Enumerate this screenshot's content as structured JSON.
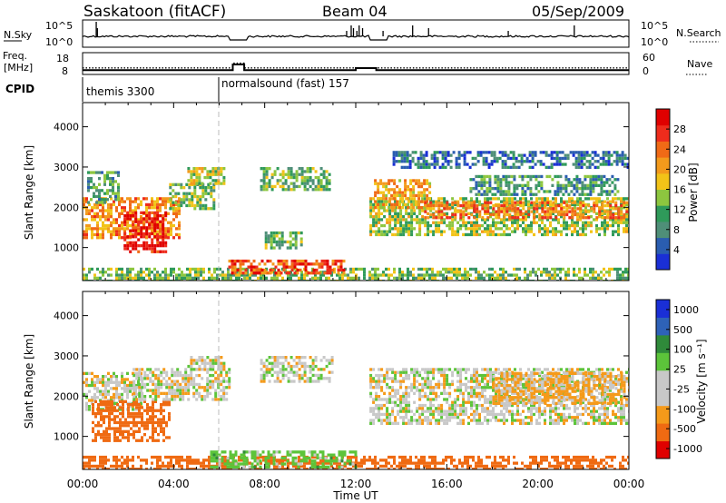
{
  "header": {
    "station": "Saskatoon (fitACF)",
    "beam": "Beam 04",
    "date": "05/Sep/2009"
  },
  "colors": {
    "power_scale": [
      "#1a2fd6",
      "#2a5db0",
      "#4f8f78",
      "#2f9a5a",
      "#8dc63f",
      "#f2c318",
      "#f39a1c",
      "#f06a16",
      "#ee2c1c",
      "#e00000"
    ],
    "velocity_scale": [
      "#e00000",
      "#ef6a12",
      "#f59a1a",
      "#c8c8c8",
      "#c8c8c8",
      "#5cc43a",
      "#2f8a3a",
      "#2e62b8",
      "#1a2fd6"
    ],
    "velocity_gray": "#c8c8c8"
  },
  "chart_data": [
    {
      "type": "line",
      "panel": "noise",
      "left_label": "N.Sky",
      "right_label": "N.Search",
      "left_ticks": [
        "10^5",
        "10^0"
      ],
      "right_ticks": [
        "10^5",
        "10^0"
      ],
      "x_range_hours": [
        0,
        24
      ]
    },
    {
      "type": "line",
      "panel": "frequency",
      "left_label": "Freq.",
      "left_unit": "[MHz]",
      "left_ticks": [
        "18",
        "8"
      ],
      "right_label": "Nave",
      "right_ticks": [
        "60",
        "0"
      ],
      "x_range_hours": [
        0,
        24
      ],
      "freq_steps": [
        [
          0,
          10
        ],
        [
          6.6,
          10
        ],
        [
          6.6,
          12.6
        ],
        [
          7.1,
          12.6
        ],
        [
          7.1,
          10
        ],
        [
          12,
          10
        ],
        [
          12,
          10.9
        ],
        [
          12.9,
          10.9
        ],
        [
          12.9,
          10
        ],
        [
          24,
          10
        ]
      ],
      "nave_steps": [
        [
          0,
          11
        ],
        [
          6.6,
          11
        ],
        [
          6.6,
          13.2
        ],
        [
          7.1,
          13.2
        ],
        [
          7.1,
          11
        ],
        [
          24,
          11
        ]
      ]
    },
    {
      "type": "table",
      "panel": "cpid",
      "label": "CPID",
      "segments": [
        {
          "start_hour": 0,
          "name": "themis 3300"
        },
        {
          "start_hour": 6,
          "name": "normalsound (fast) 157"
        }
      ]
    },
    {
      "type": "heatmap",
      "panel": "power",
      "ylabel": "Slant Range [km]",
      "yticks": [
        1000,
        2000,
        3000,
        4000
      ],
      "ylim": [
        180,
        4600
      ],
      "xlim_hours": [
        0,
        24
      ],
      "colorbar_label": "Power [dB]",
      "colorbar_ticks": [
        4,
        8,
        12,
        16,
        20,
        24,
        28
      ],
      "blobs": [
        {
          "t": [
            0,
            4.2
          ],
          "r": [
            1250,
            2250
          ],
          "v": 20
        },
        {
          "t": [
            1.8,
            3.6
          ],
          "r": [
            900,
            1900
          ],
          "v": 28
        },
        {
          "t": [
            0.2,
            1.6
          ],
          "r": [
            2100,
            2900
          ],
          "v": 10
        },
        {
          "t": [
            3.8,
            5.8
          ],
          "r": [
            2000,
            2600
          ],
          "v": 12
        },
        {
          "t": [
            4.6,
            6.2
          ],
          "r": [
            2600,
            3000
          ],
          "v": 16
        },
        {
          "t": [
            7.8,
            10.8
          ],
          "r": [
            2450,
            3000
          ],
          "v": 11
        },
        {
          "t": [
            8.0,
            9.6
          ],
          "r": [
            1000,
            1400
          ],
          "v": 11
        },
        {
          "t": [
            12.6,
            24
          ],
          "r": [
            1350,
            2250
          ],
          "v": 14
        },
        {
          "t": [
            12.8,
            15.2
          ],
          "r": [
            2000,
            2700
          ],
          "v": 19
        },
        {
          "t": [
            15.0,
            24
          ],
          "r": [
            1750,
            2150
          ],
          "v": 22
        },
        {
          "t": [
            17.0,
            23.5
          ],
          "r": [
            2300,
            2800
          ],
          "v": 9
        },
        {
          "t": [
            13.5,
            24
          ],
          "r": [
            3000,
            3400
          ],
          "v": 6
        },
        {
          "t": [
            0,
            24
          ],
          "r": [
            180,
            500
          ],
          "v": 12
        },
        {
          "t": [
            6.4,
            11.5
          ],
          "r": [
            350,
            700
          ],
          "v": 24
        }
      ]
    },
    {
      "type": "heatmap",
      "panel": "velocity",
      "ylabel": "Slant Range [km]",
      "yticks": [
        1000,
        2000,
        3000,
        4000
      ],
      "ylim": [
        180,
        4600
      ],
      "xlim_hours": [
        0,
        24
      ],
      "xticks": [
        "00:00",
        "04:00",
        "08:00",
        "12:00",
        "16:00",
        "20:00",
        "00:00"
      ],
      "xlabel": "Time UT",
      "colorbar_label": "Velocity [m s⁻¹]",
      "colorbar_ticks": [
        "1000",
        "500",
        "100",
        "25",
        "-25",
        "-100",
        "-500",
        "-1000"
      ],
      "blobs": [
        {
          "t": [
            0,
            2.6
          ],
          "r": [
            1700,
            2600
          ],
          "v": 0
        },
        {
          "t": [
            0.4,
            3.8
          ],
          "r": [
            900,
            1900
          ],
          "v": -300
        },
        {
          "t": [
            2.2,
            6.4
          ],
          "r": [
            1900,
            2700
          ],
          "v": 0
        },
        {
          "t": [
            4.6,
            6.2
          ],
          "r": [
            2650,
            3000
          ],
          "v": 0
        },
        {
          "t": [
            7.8,
            11.0
          ],
          "r": [
            2400,
            3000
          ],
          "v": 0
        },
        {
          "t": [
            12.6,
            24
          ],
          "r": [
            1300,
            2700
          ],
          "v": 0
        },
        {
          "t": [
            18.0,
            23.8
          ],
          "r": [
            1800,
            2600
          ],
          "v": -40
        },
        {
          "t": [
            0,
            24
          ],
          "r": [
            180,
            520
          ],
          "v": -200
        },
        {
          "t": [
            5.6,
            12.0
          ],
          "r": [
            250,
            650
          ],
          "v": 60
        }
      ]
    }
  ]
}
